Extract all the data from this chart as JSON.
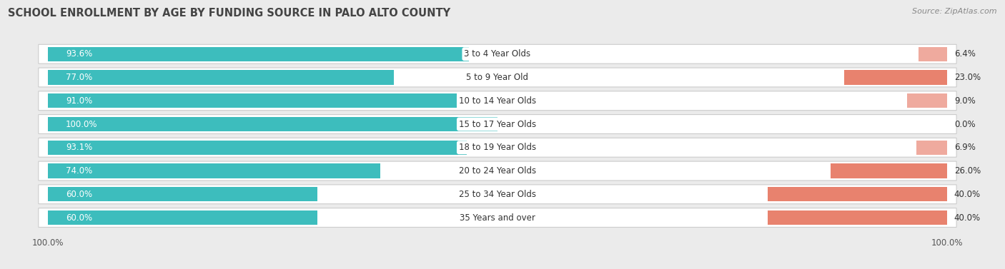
{
  "title": "SCHOOL ENROLLMENT BY AGE BY FUNDING SOURCE IN PALO ALTO COUNTY",
  "source": "Source: ZipAtlas.com",
  "categories": [
    "3 to 4 Year Olds",
    "5 to 9 Year Old",
    "10 to 14 Year Olds",
    "15 to 17 Year Olds",
    "18 to 19 Year Olds",
    "20 to 24 Year Olds",
    "25 to 34 Year Olds",
    "35 Years and over"
  ],
  "public_values": [
    93.6,
    77.0,
    91.0,
    100.0,
    93.1,
    74.0,
    60.0,
    60.0
  ],
  "private_values": [
    6.4,
    23.0,
    9.0,
    0.0,
    6.9,
    26.0,
    40.0,
    40.0
  ],
  "public_color": "#3DBDBD",
  "private_color": "#E8826E",
  "private_color_light": "#EFAA9E",
  "bg_color": "#ebebeb",
  "row_bg_color": "#ffffff",
  "title_fontsize": 10.5,
  "bar_fontsize": 8.5,
  "category_fontsize": 8.5,
  "axis_label_fontsize": 8.5,
  "bar_height": 0.62,
  "source_fontsize": 8
}
